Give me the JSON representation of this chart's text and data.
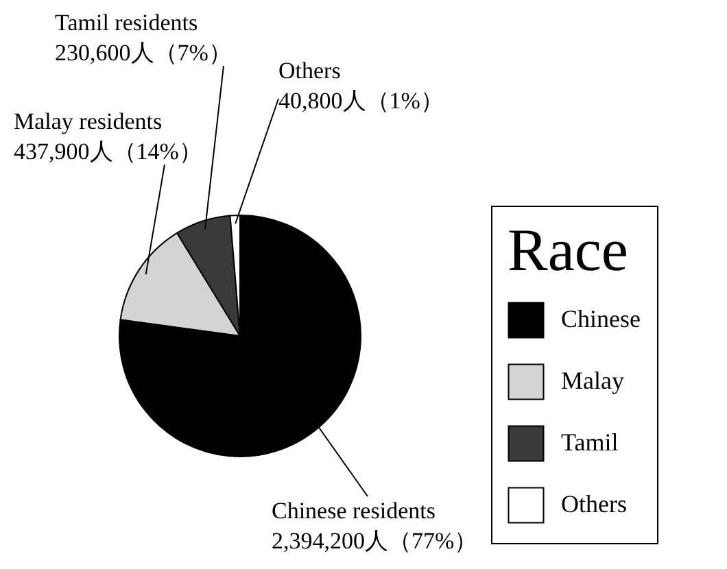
{
  "chart_data": {
    "type": "pie",
    "categories": [
      "Chinese",
      "Malay",
      "Tamil",
      "Others"
    ],
    "values": [
      2394200,
      437900,
      230600,
      40800
    ],
    "colors": [
      "#000000",
      "#d4d4d4",
      "#3a3a3a",
      "#ffffff"
    ],
    "value_labels": [
      "Chinese residents\n2,394,200人（77%）",
      "Malay residents\n437,900人（14%）",
      "Tamil residents\n230,600人（7%）",
      "Others\n40,800人（1%）"
    ],
    "legend_title": "Race",
    "legend": "right"
  }
}
